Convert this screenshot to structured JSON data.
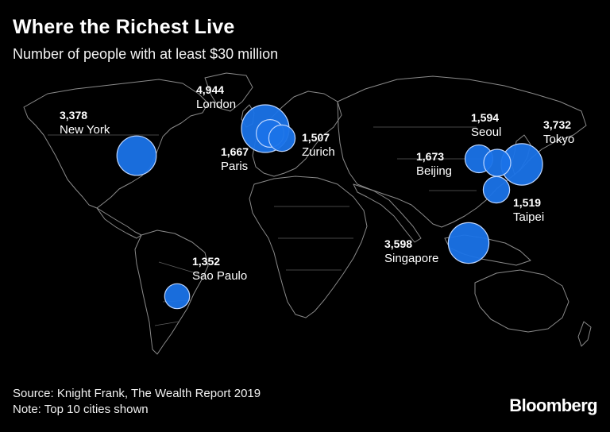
{
  "header": {
    "title": "Where the Richest Live",
    "subtitle": "Number of people with at least $30 million"
  },
  "footer": {
    "source": "Source: Knight Frank, The Wealth Report 2019",
    "note": "Note: Top 10 cities shown",
    "logo": "Bloomberg"
  },
  "colors": {
    "bubble": "#1a73e8",
    "background": "#000000",
    "land_outline": "#8a8a8a"
  },
  "cities": [
    {
      "name": "New York",
      "value": 3378,
      "display": "3,378"
    },
    {
      "name": "London",
      "value": 4944,
      "display": "4,944"
    },
    {
      "name": "Paris",
      "value": 1667,
      "display": "1,667"
    },
    {
      "name": "Zurich",
      "value": 1507,
      "display": "1,507"
    },
    {
      "name": "Seoul",
      "value": 1594,
      "display": "1,594"
    },
    {
      "name": "Tokyo",
      "value": 3732,
      "display": "3,732"
    },
    {
      "name": "Beijing",
      "value": 1673,
      "display": "1,673"
    },
    {
      "name": "Taipei",
      "value": 1519,
      "display": "1,519"
    },
    {
      "name": "Singapore",
      "value": 3598,
      "display": "3,598"
    },
    {
      "name": "Sao Paulo",
      "value": 1352,
      "display": "1,352"
    }
  ]
}
